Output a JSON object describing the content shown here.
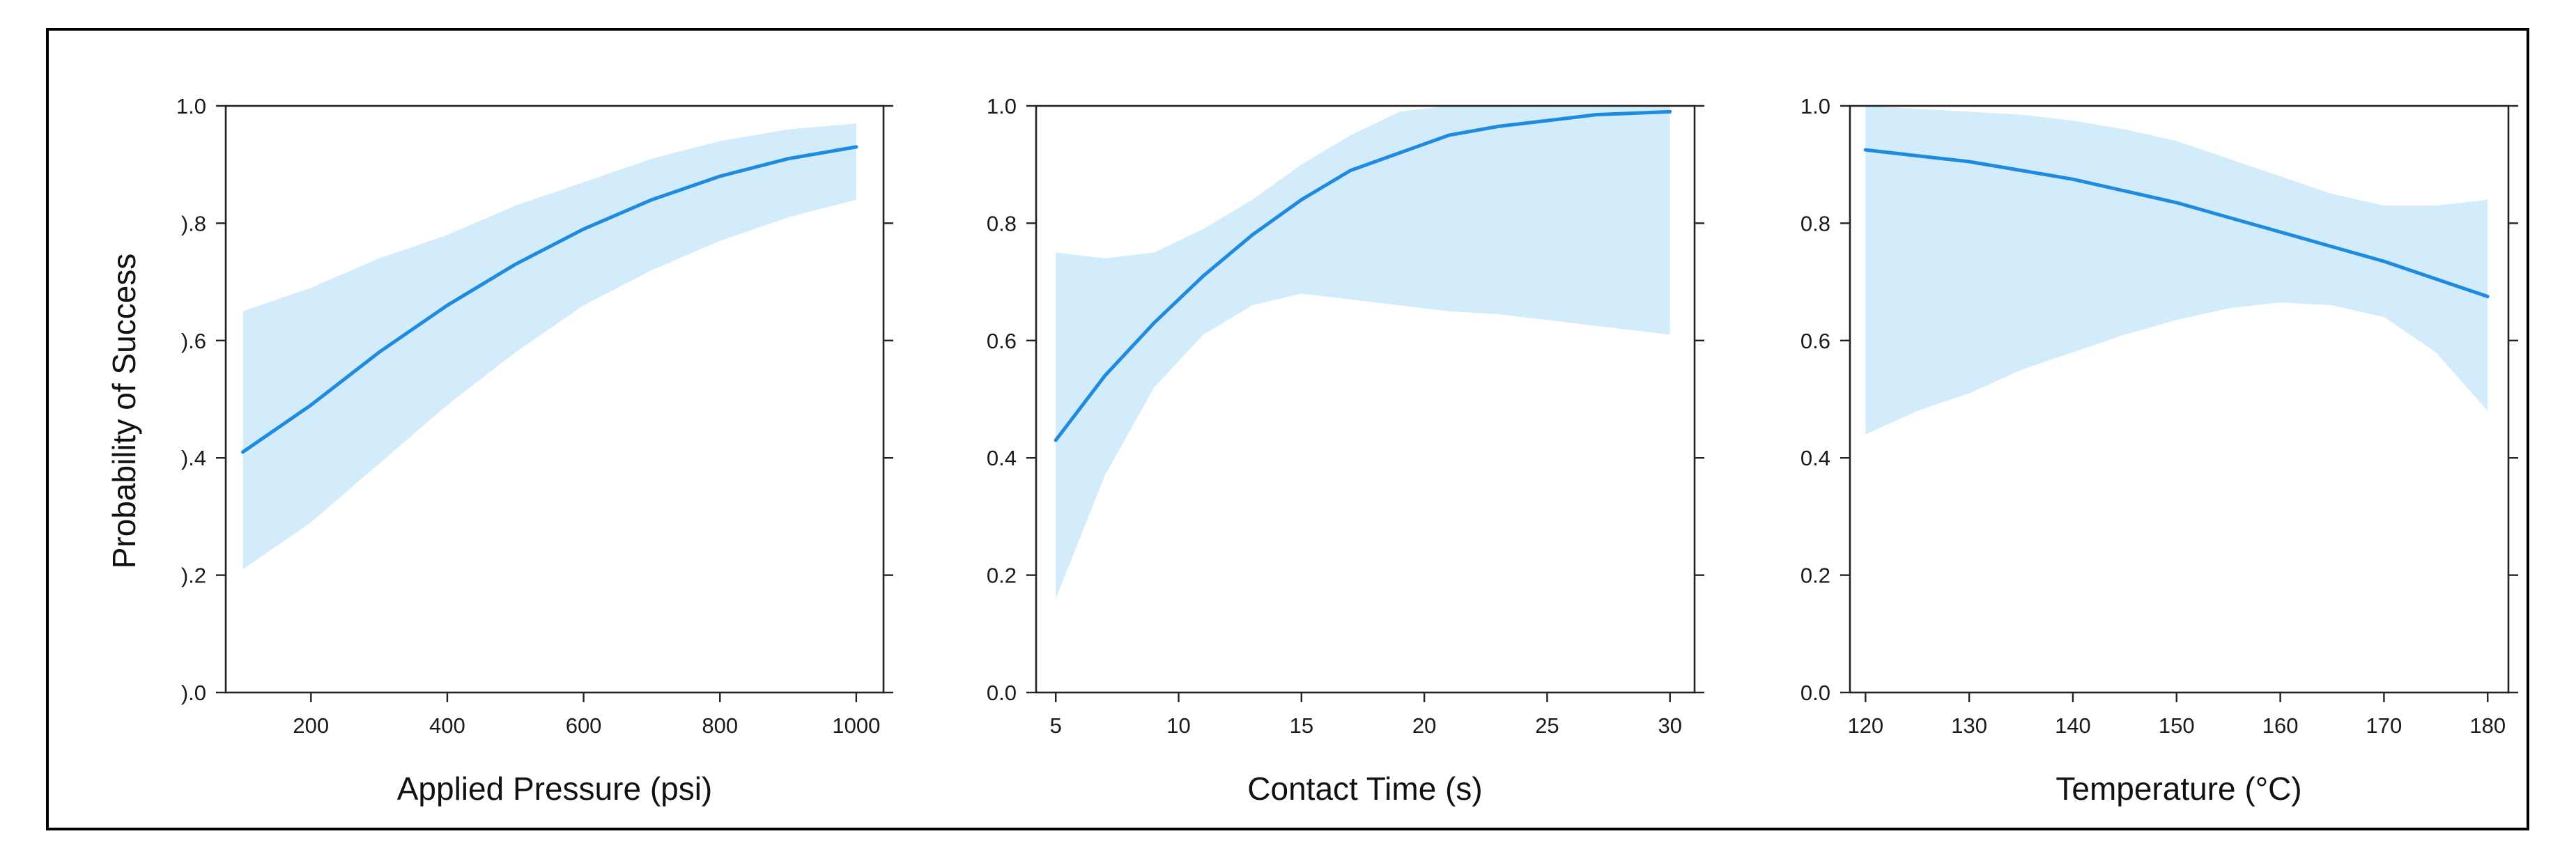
{
  "colors": {
    "line": "#1e8ae0",
    "band": "#d2ecfc",
    "frame": "#222222"
  },
  "chart_data": [
    {
      "type": "line",
      "title": "",
      "xlabel": "Applied Pressure (psi)",
      "ylabel": "Probability of Success",
      "xlim": [
        75,
        1040
      ],
      "ylim": [
        0,
        1
      ],
      "xticks": [
        200,
        400,
        600,
        800,
        1000
      ],
      "xtick_labels": [
        "200",
        "400",
        "600",
        "800",
        "1000"
      ],
      "yticks": [
        0.0,
        0.2,
        0.4,
        0.6,
        0.8,
        1.0
      ],
      "ytick_labels": [
        ").0",
        ").2",
        ").4",
        ").6",
        ").8",
        "1.0"
      ],
      "grid": false,
      "series": [
        {
          "x": [
            100,
            200,
            300,
            400,
            500,
            600,
            700,
            800,
            900,
            1000
          ],
          "y": [
            0.41,
            0.49,
            0.58,
            0.66,
            0.73,
            0.79,
            0.84,
            0.88,
            0.91,
            0.93
          ],
          "lower": [
            0.21,
            0.29,
            0.39,
            0.49,
            0.58,
            0.66,
            0.72,
            0.77,
            0.81,
            0.84
          ],
          "upper": [
            0.65,
            0.69,
            0.74,
            0.78,
            0.83,
            0.87,
            0.91,
            0.94,
            0.96,
            0.97
          ]
        }
      ]
    },
    {
      "type": "line",
      "title": "",
      "xlabel": "Contact Time (s)",
      "ylabel": "",
      "xlim": [
        4.2,
        31.0
      ],
      "ylim": [
        0,
        1
      ],
      "xticks": [
        5,
        10,
        15,
        20,
        25,
        30
      ],
      "xtick_labels": [
        "5",
        "10",
        "15",
        "20",
        "25",
        "30"
      ],
      "yticks": [
        0.0,
        0.2,
        0.4,
        0.6,
        0.8,
        1.0
      ],
      "ytick_labels": [
        "0.0",
        "0.2",
        "0.4",
        "0.6",
        "0.8",
        "1.0"
      ],
      "grid": false,
      "series": [
        {
          "x": [
            5,
            7,
            9,
            11,
            13,
            15,
            17,
            19,
            21,
            23,
            25,
            27,
            30
          ],
          "y": [
            0.43,
            0.54,
            0.63,
            0.71,
            0.78,
            0.84,
            0.89,
            0.92,
            0.95,
            0.965,
            0.975,
            0.985,
            0.99
          ],
          "lower": [
            0.16,
            0.37,
            0.52,
            0.61,
            0.66,
            0.68,
            0.67,
            0.66,
            0.65,
            0.645,
            0.635,
            0.625,
            0.61
          ],
          "upper": [
            0.75,
            0.74,
            0.75,
            0.79,
            0.84,
            0.9,
            0.95,
            0.99,
            1.0,
            1.0,
            1.0,
            1.0,
            1.0
          ]
        }
      ]
    },
    {
      "type": "line",
      "title": "",
      "xlabel": "Temperature (°C)",
      "ylabel": "",
      "xlim": [
        118.5,
        182.0
      ],
      "ylim": [
        0,
        1
      ],
      "xticks": [
        120,
        130,
        140,
        150,
        160,
        170,
        180
      ],
      "xtick_labels": [
        "120",
        "130",
        "140",
        "150",
        "160",
        "170",
        "180"
      ],
      "yticks": [
        0.0,
        0.2,
        0.4,
        0.6,
        0.8,
        1.0
      ],
      "ytick_labels": [
        "0.0",
        "0.2",
        "0.4",
        "0.6",
        "0.8",
        "1.0"
      ],
      "grid": false,
      "series": [
        {
          "x": [
            120,
            125,
            130,
            135,
            140,
            145,
            150,
            155,
            160,
            165,
            170,
            175,
            180
          ],
          "y": [
            0.925,
            0.915,
            0.905,
            0.89,
            0.875,
            0.855,
            0.835,
            0.81,
            0.785,
            0.76,
            0.735,
            0.705,
            0.675
          ],
          "lower": [
            0.44,
            0.48,
            0.51,
            0.55,
            0.58,
            0.61,
            0.635,
            0.655,
            0.665,
            0.66,
            0.64,
            0.58,
            0.48
          ],
          "upper": [
            1.0,
            0.995,
            0.99,
            0.985,
            0.975,
            0.96,
            0.94,
            0.91,
            0.88,
            0.85,
            0.83,
            0.83,
            0.84
          ]
        }
      ]
    }
  ]
}
